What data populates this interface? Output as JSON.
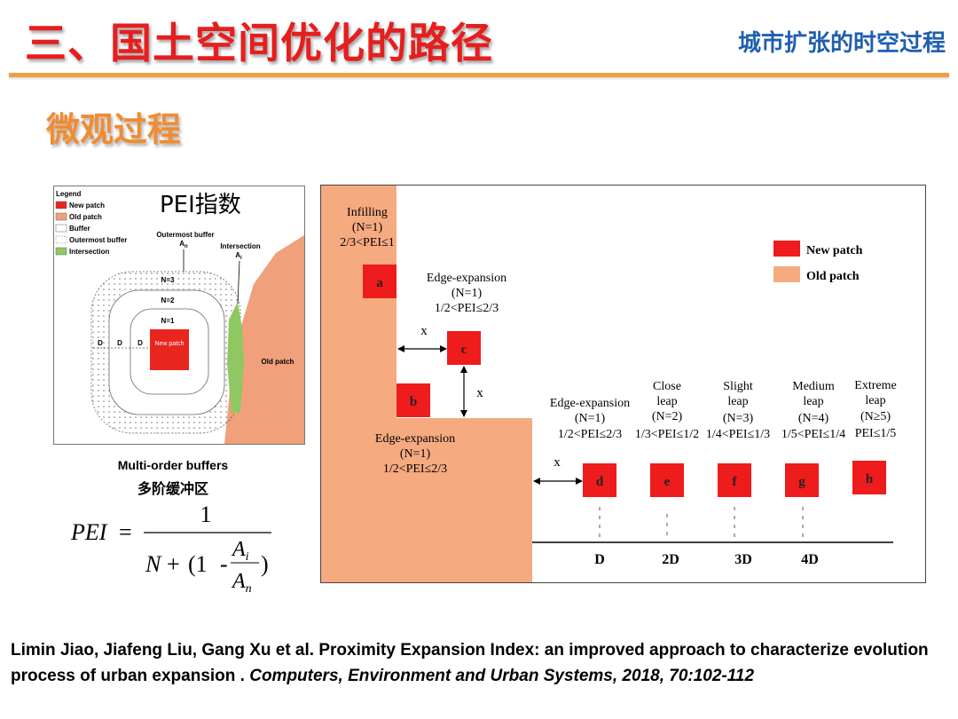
{
  "header": {
    "main_title": "三、国土空间优化的路径",
    "sub_title": "城市扩张的时空过程"
  },
  "section": {
    "title": "微观过程"
  },
  "left_figure": {
    "pei_label": "PEI指数",
    "legend": {
      "title": "Legend",
      "items": [
        {
          "label": "New patch",
          "color": "#e8251f"
        },
        {
          "label": "Old patch",
          "color": "#f0a07a"
        },
        {
          "label": "Buffer",
          "color": "#ffffff"
        },
        {
          "label": "Outermost buffer",
          "color": "#ffffff"
        },
        {
          "label": "Intersection",
          "color": "#8fc862"
        }
      ]
    },
    "outermost_buffer_label": "Outermost buffer",
    "outermost_buffer_sub": "A",
    "outermost_buffer_subscript": "n",
    "intersection_label": "Intersection",
    "intersection_sub": "A",
    "intersection_subscript": "i",
    "ring_labels": [
      "N=3",
      "N=2",
      "N=1"
    ],
    "d_label": "D",
    "new_patch_label": "New patch",
    "old_patch_label": "Old patch",
    "caption_en": "Multi-order buffers",
    "caption_cn": "多阶缓冲区"
  },
  "formula": {
    "lhs": "PEI",
    "equals": "=",
    "numerator": "1",
    "n": "N",
    "plus": "+",
    "open_paren": "(1",
    "minus": "-",
    "ai": "A",
    "ai_sub": "i",
    "an": "A",
    "an_sub": "n",
    "close_paren": ")"
  },
  "right_figure": {
    "legend": [
      {
        "label": "New patch",
        "color": "#ee1c1c"
      },
      {
        "label": "Old patch",
        "color": "#f6aa80"
      }
    ],
    "infilling": [
      "Infilling",
      "(N=1)",
      "2/3<PEI≤1"
    ],
    "edge_expansion_top": [
      "Edge-expansion",
      "(N=1)",
      "1/2<PEI≤2/3"
    ],
    "edge_expansion_mid": [
      "Edge-expansion",
      "(N=1)",
      "1/2<PEI≤2/3"
    ],
    "edge_expansion_right": [
      "Edge-expansion",
      "(N=1)",
      "1/2<PEI≤2/3"
    ],
    "close_leap": [
      "Close",
      "leap",
      "(N=2)",
      "1/3<PEI≤1/2"
    ],
    "slight_leap": [
      "Slight",
      "leap",
      "(N=3)",
      "1/4<PEI≤1/3"
    ],
    "medium_leap": [
      "Medium",
      "leap",
      "(N=4)",
      "1/5<PEI≤1/4"
    ],
    "extreme_leap": [
      "Extreme",
      "leap",
      "(N≥5)",
      "PEI≤1/5"
    ],
    "patches": [
      "a",
      "b",
      "c",
      "d",
      "e",
      "f",
      "g",
      "h"
    ],
    "x_label": "x",
    "axis_ticks": [
      "D",
      "2D",
      "3D",
      "4D"
    ]
  },
  "citation": {
    "authors": "Limin Jiao, Jiafeng Liu, Gang Xu et al. Proximity Expansion Index: an improved approach to characterize evolution process of urban expansion . ",
    "journal": "Computers, Environment and Urban Systems, 2018, 70:102-112"
  }
}
